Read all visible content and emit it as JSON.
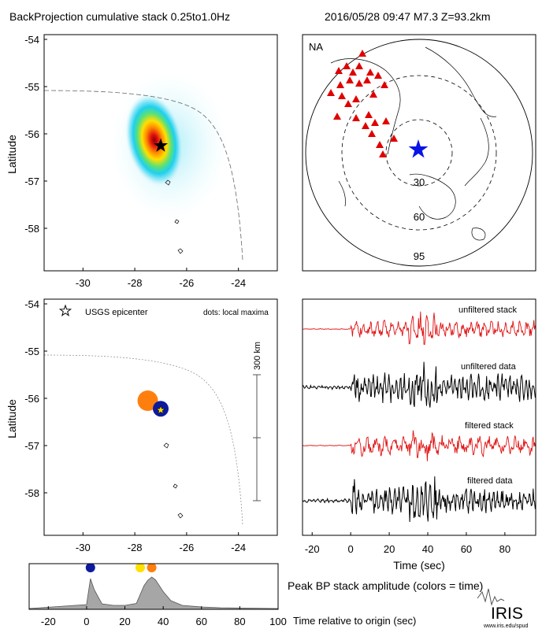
{
  "header": {
    "title_left": "BackProjection cumulative stack 0.25to1.0Hz",
    "title_right": "2016/05/28 09:47  M7.3  Z=93.2km"
  },
  "map_panels": {
    "xlabel": "",
    "ylabel": "Latitude",
    "xticks": [
      -30,
      -28,
      -26,
      -24
    ],
    "yticks": [
      -54,
      -55,
      -56,
      -57,
      -58
    ],
    "xlim": [
      -31.5,
      -22.5
    ],
    "ylim": [
      -58.9,
      -53.9
    ],
    "epicenter": {
      "lon": -27.0,
      "lat": -56.25
    }
  },
  "stack_map": {
    "peak": {
      "lon": -27.2,
      "lat": -56.0
    }
  },
  "maxima_map": {
    "legend_epicenter": "USGS epicenter",
    "legend_dots": "dots: local maxima",
    "scale_label": "300 km",
    "maxima": [
      {
        "lon": -27.5,
        "lat": -56.05,
        "color": "#ff7f0e",
        "size": "large"
      },
      {
        "lon": -27.0,
        "lat": -56.22,
        "color": "#0d1a9e",
        "size": "medium"
      }
    ]
  },
  "polar_map": {
    "region_label": "NA",
    "ring_labels": [
      "30",
      "60",
      "95"
    ],
    "station_color": "#e00000",
    "source_color": "#0a14e6"
  },
  "waveforms": {
    "labels": [
      "unfiltered stack",
      "unfiltered data",
      "filtered stack",
      "filtered data"
    ],
    "xlabel": "Time (sec)",
    "xticks": [
      -20,
      0,
      20,
      40,
      60,
      80
    ],
    "xlim": [
      -25,
      96
    ]
  },
  "caption": "Peak BP stack amplitude (colors = time)",
  "chart_data": {
    "type": "area",
    "title": "",
    "xlabel": "Time relative to origin (sec)",
    "ylabel": "",
    "xlim": [
      -30,
      100
    ],
    "xticks": [
      -20,
      0,
      20,
      40,
      60,
      80,
      100
    ],
    "x": [
      -30,
      0,
      2,
      4,
      8,
      14,
      20,
      26,
      30,
      32,
      34,
      36,
      40,
      44,
      50,
      60,
      70,
      100
    ],
    "values": [
      0.02,
      0.12,
      0.78,
      0.5,
      0.14,
      0.1,
      0.1,
      0.15,
      0.6,
      0.74,
      0.82,
      0.75,
      0.45,
      0.22,
      0.1,
      0.06,
      0.04,
      0.02
    ],
    "markers": [
      {
        "x": 2,
        "color": "#0d1a9e"
      },
      {
        "x": 28,
        "color": "#ffe000"
      },
      {
        "x": 34,
        "color": "#ff7f0e"
      }
    ]
  },
  "logo": {
    "text": "IRIS",
    "url_text": "www.iris.edu/spud"
  }
}
